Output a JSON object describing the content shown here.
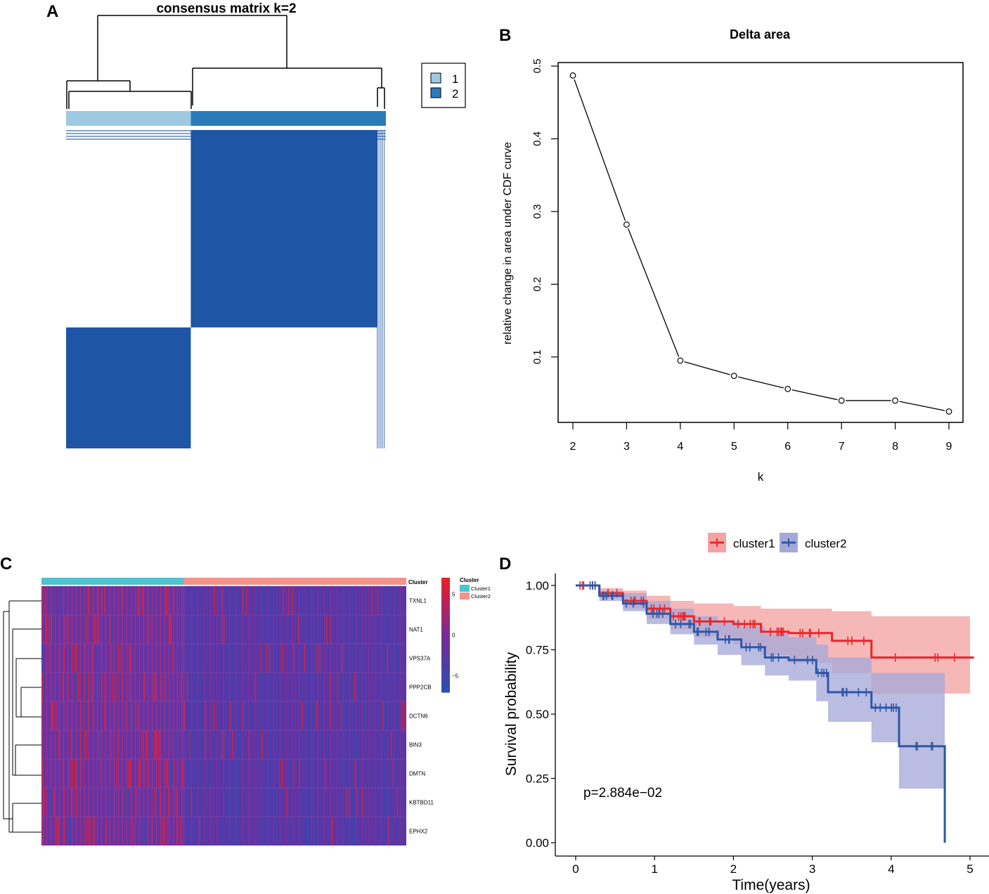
{
  "panels": {
    "a": "A",
    "b": "B",
    "c": "C",
    "d": "D"
  },
  "chart_data": [
    {
      "type": "heatmap",
      "id": "consensus_matrix",
      "title": "consensus matrix k=2",
      "legend": [
        {
          "label": "1",
          "color": "#9ecae1"
        },
        {
          "label": "2",
          "color": "#2b7bba"
        }
      ],
      "cluster_fractions": [
        0.39,
        0.61
      ],
      "matrix": [
        [
          1,
          0
        ],
        [
          0,
          1
        ]
      ],
      "colors": {
        "high": "#1f55a5",
        "low": "#ffffff"
      }
    },
    {
      "type": "line",
      "id": "delta_area",
      "title": "Delta area",
      "xlabel": "k",
      "ylabel": "relative change in area under CDF curve",
      "x": [
        2,
        3,
        4,
        5,
        6,
        7,
        8,
        9
      ],
      "y": [
        0.487,
        0.282,
        0.095,
        0.074,
        0.056,
        0.04,
        0.04,
        0.025
      ],
      "xlim": [
        2,
        9
      ],
      "ylim": [
        0.01,
        0.5
      ],
      "xticks": [
        "2",
        "3",
        "4",
        "5",
        "6",
        "7",
        "8",
        "9"
      ],
      "yticks": [
        "0.1",
        "0.2",
        "0.3",
        "0.4",
        "0.5"
      ]
    },
    {
      "type": "heatmap",
      "id": "gene_heatmap",
      "annotation_label": "Cluster",
      "legend_title": "Cluster",
      "legend": [
        {
          "label": "Cluster1",
          "color": "#4fc3cf"
        },
        {
          "label": "Cluster2",
          "color": "#f4928a"
        }
      ],
      "cluster_fractions": [
        0.39,
        0.61
      ],
      "genes": [
        "TXNL1",
        "NAT1",
        "VPS37A",
        "PPP2CB",
        "DCTN6",
        "BIN3",
        "DMTN",
        "KBTBD11",
        "EPHX2"
      ],
      "colorbar_ticks": [
        "5",
        "0",
        "−5"
      ],
      "colorbar_range": [
        -7,
        7
      ],
      "colors": {
        "high": "#e8202a",
        "mid": "#7a2a9a",
        "low": "#2b4fb0"
      }
    },
    {
      "type": "line",
      "id": "survival",
      "xlabel": "Time(years)",
      "ylabel": "Survival probability",
      "annotation": "p=2.884e−02",
      "xticks": [
        "0",
        "1",
        "2",
        "3",
        "4",
        "5"
      ],
      "yticks": [
        "0.00",
        "0.25",
        "0.50",
        "0.75",
        "1.00"
      ],
      "xlim": [
        -0.25,
        5.2
      ],
      "ylim": [
        -0.05,
        1.05
      ],
      "series": [
        {
          "name": "cluster1",
          "color": "#e8272a",
          "band": "#f4a3a3",
          "time": [
            0,
            0.3,
            0.6,
            0.9,
            1.2,
            1.5,
            2.0,
            2.35,
            2.7,
            3.25,
            3.75,
            5.0
          ],
          "surv": [
            1.0,
            0.97,
            0.94,
            0.91,
            0.88,
            0.86,
            0.85,
            0.82,
            0.815,
            0.785,
            0.72,
            0.72
          ],
          "lower": [
            1.0,
            0.95,
            0.91,
            0.87,
            0.83,
            0.8,
            0.77,
            0.73,
            0.7,
            0.66,
            0.58,
            0.58
          ],
          "upper": [
            1.0,
            0.99,
            0.98,
            0.96,
            0.94,
            0.93,
            0.92,
            0.91,
            0.91,
            0.9,
            0.88,
            0.88
          ]
        },
        {
          "name": "cluster2",
          "color": "#2c57a8",
          "band": "#a6a9d8",
          "time": [
            0,
            0.3,
            0.6,
            0.9,
            1.2,
            1.5,
            1.8,
            2.1,
            2.4,
            2.7,
            3.05,
            3.2,
            3.75,
            4.1,
            4.68
          ],
          "surv": [
            1.0,
            0.96,
            0.93,
            0.89,
            0.85,
            0.82,
            0.79,
            0.76,
            0.72,
            0.71,
            0.66,
            0.585,
            0.525,
            0.375,
            0.0
          ],
          "lower": [
            1.0,
            0.94,
            0.9,
            0.85,
            0.81,
            0.77,
            0.73,
            0.69,
            0.65,
            0.63,
            0.55,
            0.47,
            0.39,
            0.21,
            0.21
          ],
          "upper": [
            1.0,
            0.98,
            0.97,
            0.94,
            0.91,
            0.88,
            0.86,
            0.84,
            0.81,
            0.8,
            0.77,
            0.72,
            0.66,
            0.66,
            0.66
          ]
        }
      ]
    }
  ]
}
